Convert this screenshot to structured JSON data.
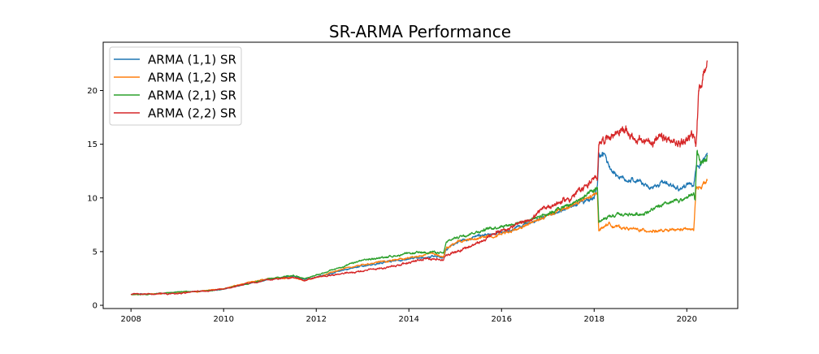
{
  "chart_data": {
    "type": "line",
    "title": "SR-ARMA Performance",
    "xlabel": "",
    "ylabel": "",
    "xlim": [
      2007.4,
      2021.1
    ],
    "ylim": [
      -0.3,
      24.5
    ],
    "xticks": [
      2008,
      2010,
      2012,
      2014,
      2016,
      2018,
      2020
    ],
    "xtick_labels": [
      "2008",
      "2010",
      "2012",
      "2014",
      "2016",
      "2018",
      "2020"
    ],
    "yticks": [
      0,
      5,
      10,
      15,
      20
    ],
    "ytick_labels": [
      "0",
      "5",
      "10",
      "15",
      "20"
    ],
    "grid": false,
    "legend_position": "top-left",
    "series": [
      {
        "name": "ARMA (1,1) SR",
        "color": "#1f77b4",
        "noise": 0.1,
        "points": [
          [
            2008.0,
            1.0
          ],
          [
            2008.5,
            1.05
          ],
          [
            2009.0,
            1.2
          ],
          [
            2009.5,
            1.3
          ],
          [
            2010.0,
            1.5
          ],
          [
            2010.5,
            2.0
          ],
          [
            2011.0,
            2.4
          ],
          [
            2011.5,
            2.7
          ],
          [
            2011.75,
            2.4
          ],
          [
            2012.0,
            2.6
          ],
          [
            2012.5,
            3.2
          ],
          [
            2013.0,
            3.7
          ],
          [
            2013.5,
            4.0
          ],
          [
            2014.0,
            4.3
          ],
          [
            2014.5,
            4.6
          ],
          [
            2014.75,
            4.4
          ],
          [
            2014.8,
            5.2
          ],
          [
            2015.0,
            5.8
          ],
          [
            2015.5,
            6.5
          ],
          [
            2016.0,
            6.8
          ],
          [
            2016.5,
            7.5
          ],
          [
            2017.0,
            8.3
          ],
          [
            2017.5,
            9.2
          ],
          [
            2018.0,
            10.0
          ],
          [
            2018.07,
            11.0
          ],
          [
            2018.1,
            13.8
          ],
          [
            2018.2,
            14.0
          ],
          [
            2018.4,
            12.5
          ],
          [
            2018.6,
            11.8
          ],
          [
            2019.0,
            11.5
          ],
          [
            2019.2,
            10.8
          ],
          [
            2019.5,
            11.5
          ],
          [
            2019.9,
            10.8
          ],
          [
            2020.0,
            11.2
          ],
          [
            2020.15,
            11.0
          ],
          [
            2020.2,
            12.8
          ],
          [
            2020.3,
            13.3
          ],
          [
            2020.44,
            14.2
          ]
        ]
      },
      {
        "name": "ARMA (1,2) SR",
        "color": "#ff7f0e",
        "noise": 0.1,
        "points": [
          [
            2008.0,
            1.0
          ],
          [
            2008.5,
            1.05
          ],
          [
            2009.0,
            1.2
          ],
          [
            2009.5,
            1.3
          ],
          [
            2010.0,
            1.55
          ],
          [
            2010.5,
            2.1
          ],
          [
            2011.0,
            2.5
          ],
          [
            2011.5,
            2.6
          ],
          [
            2011.75,
            2.3
          ],
          [
            2012.0,
            2.6
          ],
          [
            2012.5,
            3.3
          ],
          [
            2013.0,
            3.8
          ],
          [
            2013.5,
            4.1
          ],
          [
            2014.0,
            4.4
          ],
          [
            2014.5,
            4.8
          ],
          [
            2014.75,
            4.5
          ],
          [
            2014.8,
            5.3
          ],
          [
            2015.0,
            5.8
          ],
          [
            2015.5,
            6.3
          ],
          [
            2016.0,
            6.6
          ],
          [
            2016.5,
            7.4
          ],
          [
            2017.0,
            8.3
          ],
          [
            2017.5,
            9.3
          ],
          [
            2018.0,
            10.2
          ],
          [
            2018.07,
            10.5
          ],
          [
            2018.1,
            7.0
          ],
          [
            2018.3,
            7.6
          ],
          [
            2018.5,
            7.3
          ],
          [
            2019.0,
            7.0
          ],
          [
            2019.5,
            6.9
          ],
          [
            2020.0,
            7.1
          ],
          [
            2020.15,
            7.0
          ],
          [
            2020.2,
            10.8
          ],
          [
            2020.44,
            11.6
          ]
        ]
      },
      {
        "name": "ARMA (2,1) SR",
        "color": "#2ca02c",
        "noise": 0.1,
        "points": [
          [
            2008.0,
            1.0
          ],
          [
            2008.5,
            1.05
          ],
          [
            2009.0,
            1.25
          ],
          [
            2009.5,
            1.3
          ],
          [
            2010.0,
            1.5
          ],
          [
            2010.5,
            2.0
          ],
          [
            2011.0,
            2.5
          ],
          [
            2011.5,
            2.8
          ],
          [
            2011.75,
            2.5
          ],
          [
            2012.0,
            2.8
          ],
          [
            2012.5,
            3.5
          ],
          [
            2013.0,
            4.2
          ],
          [
            2013.5,
            4.5
          ],
          [
            2014.0,
            4.8
          ],
          [
            2014.5,
            5.0
          ],
          [
            2014.75,
            4.8
          ],
          [
            2014.8,
            5.8
          ],
          [
            2015.0,
            6.3
          ],
          [
            2015.5,
            6.9
          ],
          [
            2016.0,
            7.4
          ],
          [
            2016.5,
            7.8
          ],
          [
            2017.0,
            8.6
          ],
          [
            2017.5,
            9.4
          ],
          [
            2018.0,
            10.6
          ],
          [
            2018.07,
            11.0
          ],
          [
            2018.1,
            7.8
          ],
          [
            2018.5,
            8.4
          ],
          [
            2019.0,
            8.5
          ],
          [
            2019.5,
            9.3
          ],
          [
            2020.0,
            10.0
          ],
          [
            2020.15,
            10.4
          ],
          [
            2020.18,
            9.8
          ],
          [
            2020.22,
            14.2
          ],
          [
            2020.3,
            13.0
          ],
          [
            2020.44,
            14.0
          ]
        ]
      },
      {
        "name": "ARMA (2,2) SR",
        "color": "#d62728",
        "noise": 0.13,
        "points": [
          [
            2008.0,
            1.0
          ],
          [
            2008.5,
            1.05
          ],
          [
            2009.0,
            1.1
          ],
          [
            2009.5,
            1.3
          ],
          [
            2010.0,
            1.5
          ],
          [
            2010.5,
            2.0
          ],
          [
            2011.0,
            2.4
          ],
          [
            2011.5,
            2.6
          ],
          [
            2011.75,
            2.3
          ],
          [
            2012.0,
            2.6
          ],
          [
            2012.5,
            2.9
          ],
          [
            2013.0,
            3.2
          ],
          [
            2013.5,
            3.5
          ],
          [
            2014.0,
            4.0
          ],
          [
            2014.5,
            4.4
          ],
          [
            2014.75,
            4.2
          ],
          [
            2014.8,
            4.7
          ],
          [
            2015.0,
            5.0
          ],
          [
            2015.5,
            5.8
          ],
          [
            2016.0,
            7.0
          ],
          [
            2016.5,
            7.7
          ],
          [
            2017.0,
            9.2
          ],
          [
            2017.5,
            10.0
          ],
          [
            2018.0,
            11.8
          ],
          [
            2018.07,
            11.5
          ],
          [
            2018.1,
            15.3
          ],
          [
            2018.3,
            15.7
          ],
          [
            2018.6,
            16.4
          ],
          [
            2018.9,
            15.5
          ],
          [
            2019.0,
            15.2
          ],
          [
            2019.5,
            15.5
          ],
          [
            2019.8,
            15.0
          ],
          [
            2020.0,
            15.5
          ],
          [
            2020.15,
            16.0
          ],
          [
            2020.2,
            15.0
          ],
          [
            2020.25,
            19.5
          ],
          [
            2020.35,
            21.5
          ],
          [
            2020.44,
            22.8
          ]
        ]
      }
    ]
  }
}
